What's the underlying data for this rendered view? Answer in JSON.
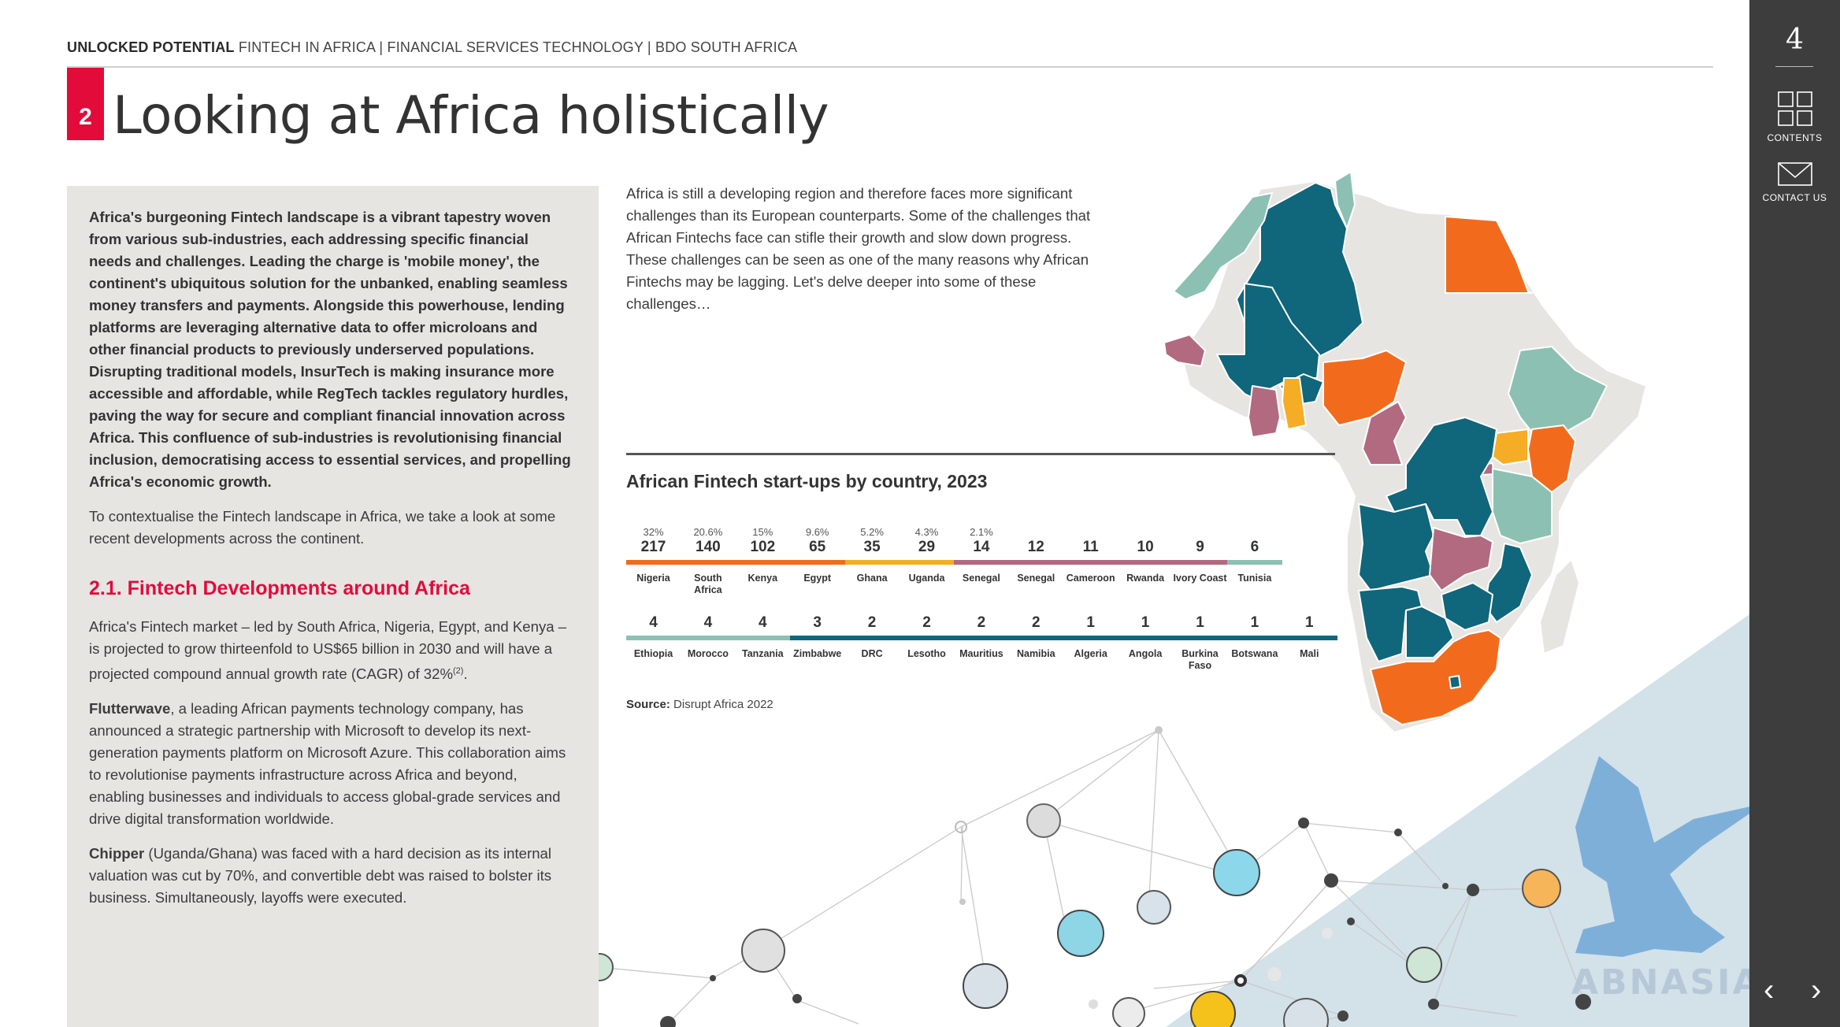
{
  "header": {
    "bold": "UNLOCKED POTENTIAL",
    "rest": "FINTECH IN AFRICA | FINANCIAL SERVICES TECHNOLOGY | BDO SOUTH AFRICA"
  },
  "section": {
    "number": "2",
    "title": "Looking at Africa holistically"
  },
  "left": {
    "lead": "Africa's burgeoning Fintech landscape is a vibrant tapestry woven from various sub-industries, each addressing specific financial needs and challenges. Leading the charge is 'mobile money', the continent's ubiquitous solution for the unbanked, enabling seamless money transfers and payments. Alongside this powerhouse, lending platforms are leveraging alternative data to offer microloans and other financial products to previously underserved populations. Disrupting traditional models, InsurTech is making insurance more accessible and affordable, while RegTech tackles regulatory hurdles, paving the way for secure and compliant financial innovation across Africa. This confluence of sub-industries is revolutionising financial inclusion, democratising access to essential services, and propelling Africa's economic growth.",
    "context": "To contextualise the Fintech landscape in Africa, we take a look at some recent developments across the continent.",
    "heading": "2.1. Fintech Developments around Africa",
    "p1": "Africa's Fintech market – led by South Africa, Nigeria, Egypt, and Kenya – is projected to grow thirteenfold to US$65 billion in 2030 and will have a projected compound annual growth rate (CAGR) of 32%",
    "p1_ref": "(2)",
    "p1_end": ".",
    "p2_name": "Flutterwave",
    "p2": ", a leading African payments technology company, has announced a strategic partnership with Microsoft to develop its next-generation payments platform on Microsoft Azure. This collaboration aims to revolutionise payments infrastructure across Africa and beyond, enabling businesses and individuals to access global-grade services and drive digital transformation worldwide.",
    "p3_name": "Chipper",
    "p3": " (Uganda/Ghana) was faced with a hard decision as its internal valuation was cut by 70%, and convertible debt was raised to bolster its business. Simultaneously, layoffs were executed."
  },
  "intro": "Africa is still a developing region and therefore faces more significant challenges than its European counterparts. Some of the challenges that African Fintechs face can stifle their growth and slow down progress. These challenges can be seen as one of the many reasons why African Fintechs may be lagging. Let's delve deeper into some of these challenges…",
  "chart_data": {
    "type": "table",
    "title": "African Fintech start-ups by country, 2023",
    "row1": [
      {
        "country": "Nigeria",
        "value": 217,
        "pct": "32%",
        "color": "#f26b1d"
      },
      {
        "country": "South Africa",
        "value": 140,
        "pct": "20.6%",
        "color": "#f26b1d"
      },
      {
        "country": "Kenya",
        "value": 102,
        "pct": "15%",
        "color": "#f26b1d"
      },
      {
        "country": "Egypt",
        "value": 65,
        "pct": "9.6%",
        "color": "#f26b1d"
      },
      {
        "country": "Ghana",
        "value": 35,
        "pct": "5.2%",
        "color": "#f5ad26"
      },
      {
        "country": "Uganda",
        "value": 29,
        "pct": "4.3%",
        "color": "#f5ad26"
      },
      {
        "country": "Senegal",
        "value": 14,
        "pct": "2.1%",
        "color": "#b26a80"
      },
      {
        "country": "Senegal",
        "value": 12,
        "pct": "",
        "color": "#b26a80"
      },
      {
        "country": "Cameroon",
        "value": 11,
        "pct": "",
        "color": "#b26a80"
      },
      {
        "country": "Rwanda",
        "value": 10,
        "pct": "",
        "color": "#b26a80"
      },
      {
        "country": "Ivory Coast",
        "value": 9,
        "pct": "",
        "color": "#b26a80"
      },
      {
        "country": "Tunisia",
        "value": 6,
        "pct": "",
        "color": "#8cc0b3"
      }
    ],
    "row2": [
      {
        "country": "Ethiopia",
        "value": 4,
        "color": "#8cc0b3"
      },
      {
        "country": "Morocco",
        "value": 4,
        "color": "#8cc0b3"
      },
      {
        "country": "Tanzania",
        "value": 4,
        "color": "#8cc0b3"
      },
      {
        "country": "Zimbabwe",
        "value": 3,
        "color": "#10667a"
      },
      {
        "country": "DRC",
        "value": 2,
        "color": "#10667a"
      },
      {
        "country": "Lesotho",
        "value": 2,
        "color": "#10667a"
      },
      {
        "country": "Mauritius",
        "value": 2,
        "color": "#10667a"
      },
      {
        "country": "Namibia",
        "value": 2,
        "color": "#10667a"
      },
      {
        "country": "Algeria",
        "value": 1,
        "color": "#10667a"
      },
      {
        "country": "Angola",
        "value": 1,
        "color": "#10667a"
      },
      {
        "country": "Burkina Faso",
        "value": 1,
        "color": "#10667a"
      },
      {
        "country": "Botswana",
        "value": 1,
        "color": "#10667a"
      },
      {
        "country": "Mali",
        "value": 1,
        "color": "#10667a"
      }
    ]
  },
  "source": {
    "label": "Source:",
    "text": "Disrupt Africa 2022"
  },
  "sidebar": {
    "page": "4",
    "contents": "CONTENTS",
    "contact": "CONTACT US",
    "prev": "‹",
    "next": "›"
  },
  "watermark": "ABNASIA.ORG",
  "colors": {
    "accent": "#e30b3a",
    "orange": "#f26b1d",
    "amber": "#f5ad26",
    "mauve": "#b26a80",
    "sage": "#8cc0b3",
    "teal": "#10667a",
    "grey": "#e7e5e2"
  }
}
